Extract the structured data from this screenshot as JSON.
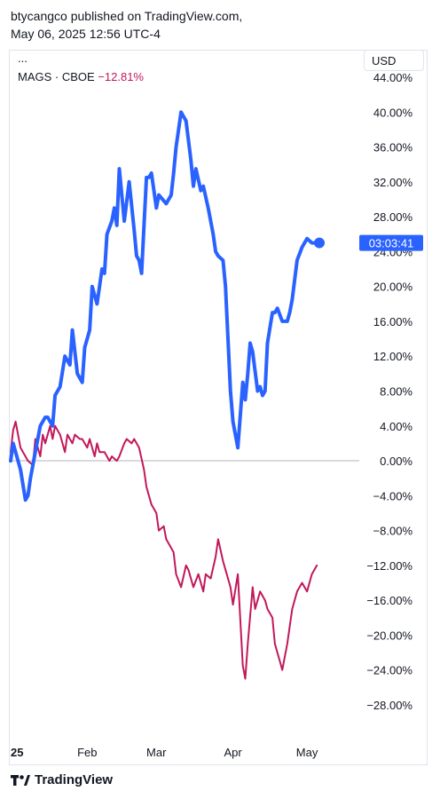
{
  "header": {
    "line1": "btycangco published on TradingView.com,",
    "line2": "May 06, 2025 12:56 UTC-4"
  },
  "menu_dots": "...",
  "legend": {
    "symbol": "MAGS · CBOE",
    "change": "−12.81%"
  },
  "currency": "USD",
  "last_value_label": "03:03:41",
  "footer": {
    "brand": "TradingView"
  },
  "colors": {
    "blue": "#2962ff",
    "magenta": "#c2185b",
    "zero_line": "#b2b5be",
    "label_bg": "#2962ff"
  },
  "chart_data": {
    "type": "line",
    "ylim": [
      -32,
      44
    ],
    "y_ticks": [
      "44.00%",
      "40.00%",
      "36.00%",
      "32.00%",
      "28.00%",
      "24.00%",
      "20.00%",
      "16.00%",
      "12.00%",
      "8.00%",
      "4.00%",
      "0.00%",
      "−4.00%",
      "−8.00%",
      "−12.00%",
      "−16.00%",
      "−20.00%",
      "−24.00%",
      "−28.00%"
    ],
    "y_tick_values": [
      44,
      40,
      36,
      32,
      28,
      24,
      20,
      16,
      12,
      8,
      4,
      0,
      -4,
      -8,
      -12,
      -16,
      -20,
      -24,
      -28
    ],
    "x_ticks": [
      "25",
      "Feb",
      "Mar",
      "Apr",
      "May"
    ],
    "x_tick_days": [
      0,
      31,
      59,
      90,
      120
    ],
    "x_range_days": [
      0,
      129
    ],
    "series": [
      {
        "color": "#2962ff",
        "x": [
          0,
          1,
          2,
          4,
          6,
          7,
          8,
          10,
          12,
          14,
          15,
          17,
          18,
          20,
          22,
          24,
          25,
          27,
          29,
          30,
          32,
          33,
          35,
          37,
          38,
          39,
          41,
          42,
          43,
          44,
          46,
          48,
          50,
          51,
          52,
          53,
          55,
          56,
          57,
          59,
          60,
          63,
          65,
          66,
          67,
          69,
          70,
          71,
          73,
          74,
          75,
          77,
          78,
          80,
          82,
          83,
          84,
          86,
          87,
          89,
          90,
          92,
          94,
          95,
          96,
          97,
          98,
          100,
          101,
          102,
          103,
          104,
          106,
          107,
          108,
          110,
          111,
          112,
          113,
          114,
          116,
          118,
          119,
          120,
          122,
          125
        ],
        "y": [
          0,
          2,
          1,
          -1,
          -4.5,
          -4,
          -2,
          1,
          4,
          5,
          5,
          4,
          7.5,
          8.5,
          12,
          11,
          15,
          10,
          9,
          13,
          15,
          20,
          18,
          22,
          21.5,
          26,
          27.5,
          29,
          27,
          33.5,
          27.5,
          32,
          26.5,
          23.5,
          23,
          21.5,
          32.5,
          32.5,
          33,
          29,
          30.5,
          29.5,
          30.5,
          33,
          36,
          40,
          39.5,
          39,
          34.5,
          31.5,
          33.5,
          31,
          31.5,
          29,
          26,
          24,
          23.5,
          23,
          20,
          8,
          4.5,
          1.5,
          9,
          7,
          10,
          13.5,
          12.5,
          8,
          8.5,
          7.5,
          8,
          13.5,
          17,
          17,
          17.5,
          16,
          16,
          16,
          17,
          18.5,
          23,
          24.5,
          25,
          25.5,
          25,
          25
        ]
      },
      {
        "color": "#c2185b",
        "x": [
          0,
          1,
          2,
          4,
          6,
          7,
          9,
          10,
          12,
          13,
          14,
          16,
          17,
          18,
          20,
          22,
          23,
          25,
          26,
          28,
          29,
          31,
          32,
          34,
          35,
          36,
          38,
          40,
          41,
          43,
          44,
          46,
          47,
          49,
          50,
          52,
          54,
          55,
          57,
          59,
          60,
          62,
          63,
          65,
          66,
          67,
          69,
          71,
          72,
          74,
          76,
          78,
          79,
          81,
          83,
          84,
          86,
          87,
          89,
          90,
          92,
          94,
          95,
          96,
          98,
          99,
          101,
          103,
          104,
          106,
          107,
          109,
          110,
          112,
          113,
          114,
          116,
          118,
          120,
          122,
          124
        ],
        "y": [
          1,
          3.5,
          4.5,
          1.5,
          0.5,
          0,
          -0.5,
          2.5,
          0.5,
          3,
          2,
          4,
          2.5,
          4,
          3,
          1,
          3,
          2,
          3,
          2.5,
          2.5,
          1.5,
          2.5,
          0.5,
          2,
          1,
          1,
          0,
          0.5,
          0,
          0.5,
          2,
          2.5,
          2,
          2.5,
          1.5,
          -1,
          -3,
          -5,
          -6,
          -8,
          -7.5,
          -9,
          -10,
          -10.5,
          -13,
          -14.5,
          -12,
          -12.5,
          -14.5,
          -13,
          -15,
          -13,
          -13.5,
          -11,
          -9,
          -11.5,
          -12.5,
          -14.5,
          -16.5,
          -13,
          -23.5,
          -25,
          -21,
          -14.5,
          -17,
          -15,
          -16,
          -17,
          -18,
          -21,
          -23,
          -24,
          -21,
          -19,
          -17,
          -15,
          -14,
          -15,
          -13,
          -12
        ]
      }
    ]
  }
}
